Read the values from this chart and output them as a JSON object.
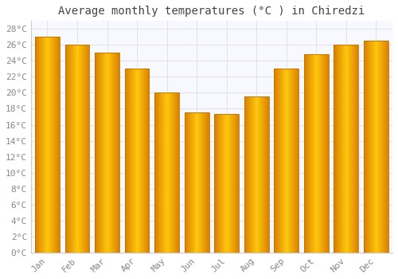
{
  "title": "Average monthly temperatures (°C ) in Chiredzi",
  "months": [
    "Jan",
    "Feb",
    "Mar",
    "Apr",
    "May",
    "Jun",
    "Jul",
    "Aug",
    "Sep",
    "Oct",
    "Nov",
    "Dec"
  ],
  "values": [
    27.0,
    26.0,
    25.0,
    23.0,
    20.0,
    17.5,
    17.3,
    19.5,
    23.0,
    24.8,
    26.0,
    26.5
  ],
  "bar_color_center": "#FFB300",
  "bar_color_edge": "#E07800",
  "background_color": "#FFFFFF",
  "plot_bg_color": "#F8F8FF",
  "grid_color": "#DDDDEE",
  "ylim": [
    0,
    29
  ],
  "yticks": [
    0,
    2,
    4,
    6,
    8,
    10,
    12,
    14,
    16,
    18,
    20,
    22,
    24,
    26,
    28
  ],
  "ytick_labels": [
    "0°C",
    "2°C",
    "4°C",
    "6°C",
    "8°C",
    "10°C",
    "12°C",
    "14°C",
    "16°C",
    "18°C",
    "20°C",
    "22°C",
    "24°C",
    "26°C",
    "28°C"
  ],
  "title_fontsize": 10,
  "tick_fontsize": 8,
  "tick_color": "#888888",
  "title_color": "#444444"
}
